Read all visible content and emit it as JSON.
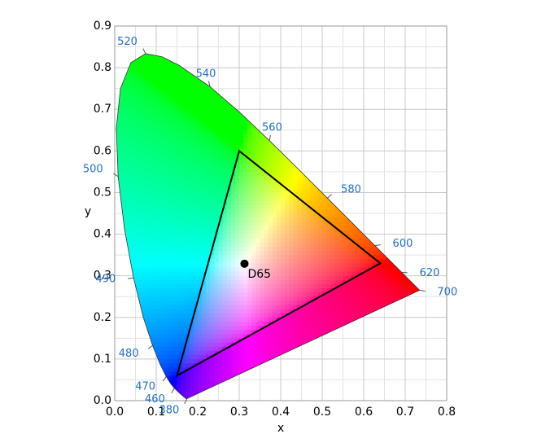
{
  "chart_data": {
    "type": "chromaticity",
    "xlabel": "x",
    "ylabel": "y",
    "xlim": [
      0,
      0.8
    ],
    "ylim": [
      0,
      0.9
    ],
    "xticks": [
      {
        "value": 0,
        "label": "0.0"
      },
      {
        "value": 0.1,
        "label": "0.1"
      },
      {
        "value": 0.2,
        "label": "0.2"
      },
      {
        "value": 0.3,
        "label": "0.3"
      },
      {
        "value": 0.4,
        "label": "0.4"
      },
      {
        "value": 0.5,
        "label": "0.5"
      },
      {
        "value": 0.6,
        "label": "0.6"
      },
      {
        "value": 0.7,
        "label": "0.7"
      },
      {
        "value": 0.8,
        "label": "0.8"
      }
    ],
    "yticks": [
      {
        "value": 0,
        "label": "0.0"
      },
      {
        "value": 0.1,
        "label": "0.1"
      },
      {
        "value": 0.2,
        "label": "0.2"
      },
      {
        "value": 0.3,
        "label": "0.3"
      },
      {
        "value": 0.4,
        "label": "0.4"
      },
      {
        "value": 0.5,
        "label": "0.5"
      },
      {
        "value": 0.6,
        "label": "0.6"
      },
      {
        "value": 0.7,
        "label": "0.7"
      },
      {
        "value": 0.8,
        "label": "0.8"
      },
      {
        "value": 0.9,
        "label": "0.9"
      }
    ],
    "xminor": [
      0.05,
      0.15,
      0.25,
      0.35,
      0.45,
      0.55,
      0.65,
      0.75
    ],
    "yminor": [
      0.05,
      0.15,
      0.25,
      0.35,
      0.45,
      0.55,
      0.65,
      0.75,
      0.85
    ],
    "grid": true,
    "locus": {
      "x": [
        0.1741,
        0.1733,
        0.1714,
        0.1644,
        0.1566,
        0.144,
        0.1355,
        0.1241,
        0.1096,
        0.0913,
        0.0687,
        0.0454,
        0.0235,
        0.0082,
        0.0039,
        0.0139,
        0.0389,
        0.0743,
        0.1142,
        0.1547,
        0.2296,
        0.3016,
        0.3731,
        0.4441,
        0.5125,
        0.5752,
        0.627,
        0.6658,
        0.6915,
        0.719,
        0.7347
      ],
      "y": [
        0.005,
        0.0048,
        0.0051,
        0.0109,
        0.0177,
        0.0297,
        0.0399,
        0.0578,
        0.0868,
        0.1327,
        0.2007,
        0.295,
        0.4127,
        0.5384,
        0.6548,
        0.7502,
        0.812,
        0.8338,
        0.8262,
        0.8059,
        0.7543,
        0.6923,
        0.6245,
        0.5547,
        0.4866,
        0.4242,
        0.3725,
        0.334,
        0.3083,
        0.2809,
        0.2653
      ]
    },
    "wavelengths": {
      "labels": [
        380,
        460,
        470,
        480,
        490,
        500,
        520,
        540,
        560,
        580,
        600,
        620,
        700
      ],
      "x": [
        0.1741,
        0.144,
        0.1241,
        0.0913,
        0.0454,
        0.0082,
        0.0743,
        0.2296,
        0.3731,
        0.5125,
        0.627,
        0.6915,
        0.7347
      ],
      "y": [
        0.005,
        0.0297,
        0.0578,
        0.1327,
        0.295,
        0.5384,
        0.8338,
        0.7543,
        0.6245,
        0.4866,
        0.3725,
        0.3083,
        0.2653
      ],
      "color": "#1f6fd0"
    },
    "gamut": {
      "x": [
        0.64,
        0.3,
        0.15
      ],
      "y": [
        0.33,
        0.6,
        0.06
      ],
      "color": "#000000"
    },
    "white_point": {
      "name": "D65",
      "x": 0.3127,
      "y": 0.329
    }
  }
}
